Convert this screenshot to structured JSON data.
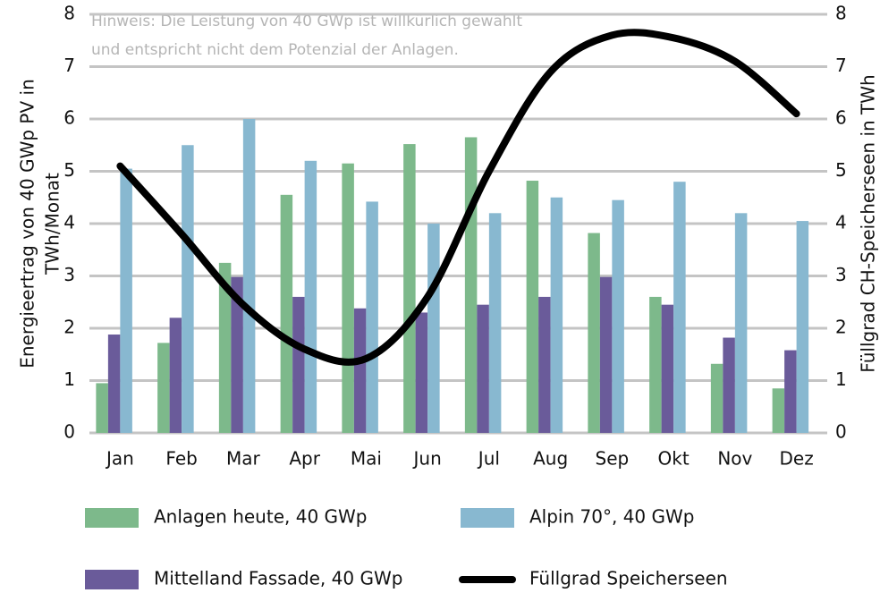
{
  "chart_data": {
    "type": "bar",
    "annotation": [
      "Hinweis: Die Leistung von 40 GWp ist willkürlich gewählt",
      "und entspricht nicht dem Potenzial der Anlagen."
    ],
    "ylabel": [
      "Energieertrag von 40 GWp PV in",
      "TWh/Monat"
    ],
    "y2label": "Füllgrad CH-Speicherseen in TWh",
    "categories": [
      "Jan",
      "Feb",
      "Mar",
      "Apr",
      "Mai",
      "Jun",
      "Jul",
      "Aug",
      "Sep",
      "Okt",
      "Nov",
      "Dez"
    ],
    "series": [
      {
        "name": "Anlagen heute, 40 GWp",
        "color": "#7db98b",
        "type": "bar",
        "values": [
          0.95,
          1.72,
          3.25,
          4.55,
          5.15,
          5.52,
          5.65,
          4.82,
          3.82,
          2.6,
          1.32,
          0.85
        ]
      },
      {
        "name": "Mittelland Fassade, 40 GWp",
        "color": "#6a5b9a",
        "type": "bar",
        "values": [
          1.88,
          2.2,
          2.98,
          2.6,
          2.38,
          2.3,
          2.45,
          2.6,
          2.98,
          2.45,
          1.82,
          1.58
        ]
      },
      {
        "name": "Alpin 70°, 40 GWp",
        "color": "#88b8d0",
        "type": "bar",
        "values": [
          5.05,
          5.5,
          6.0,
          5.2,
          4.42,
          4.0,
          4.2,
          4.5,
          4.45,
          4.8,
          4.2,
          4.05
        ]
      },
      {
        "name": "Füllgrad Speicherseen",
        "color": "#000000",
        "type": "line",
        "axis": "y2",
        "values": [
          5.1,
          3.8,
          2.45,
          1.6,
          1.42,
          2.6,
          5.0,
          6.9,
          7.6,
          7.55,
          7.1,
          6.1
        ]
      }
    ],
    "ylim": [
      0,
      8
    ],
    "yticks": [
      0,
      1,
      2,
      3,
      4,
      5,
      6,
      7,
      8
    ],
    "y2lim": [
      0,
      8
    ],
    "y2ticks": [
      0,
      1,
      2,
      3,
      4,
      5,
      6,
      7,
      8
    ],
    "grid": true
  }
}
